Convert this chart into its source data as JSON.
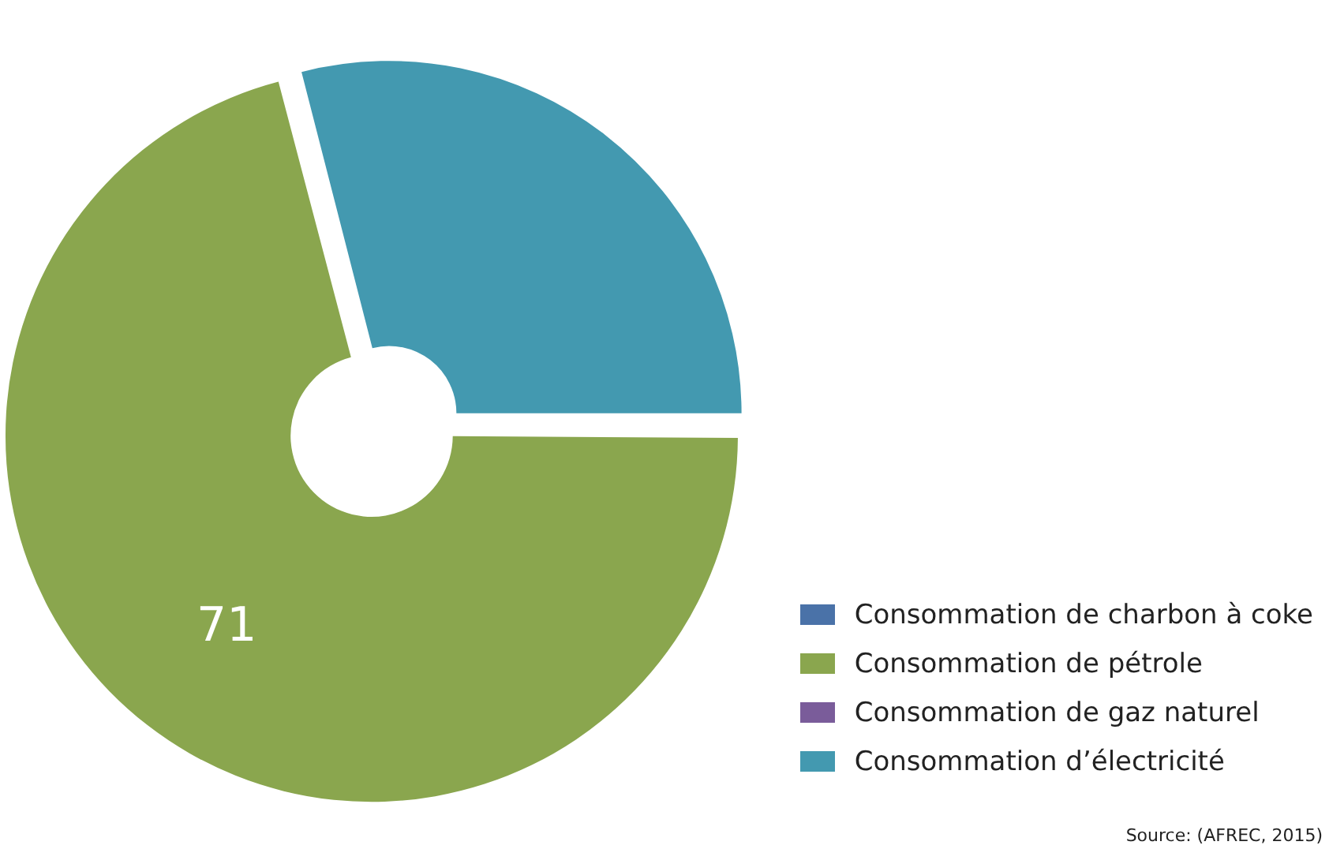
{
  "chart_data": {
    "type": "donut",
    "categories": [
      "Consommation de charbon à coke",
      "Consommation de pétrole",
      "Consommation de gaz naturel",
      "Consommation d’électricité"
    ],
    "values": [
      0,
      71,
      0,
      29
    ],
    "colors": [
      "#4a72a8",
      "#8aa64e",
      "#7a5c9a",
      "#4399b0"
    ],
    "value_labels": [
      null,
      "71",
      null,
      null
    ],
    "legend": "bottom right",
    "annotations": [
      "Source: (AFREC, 2015)"
    ]
  }
}
